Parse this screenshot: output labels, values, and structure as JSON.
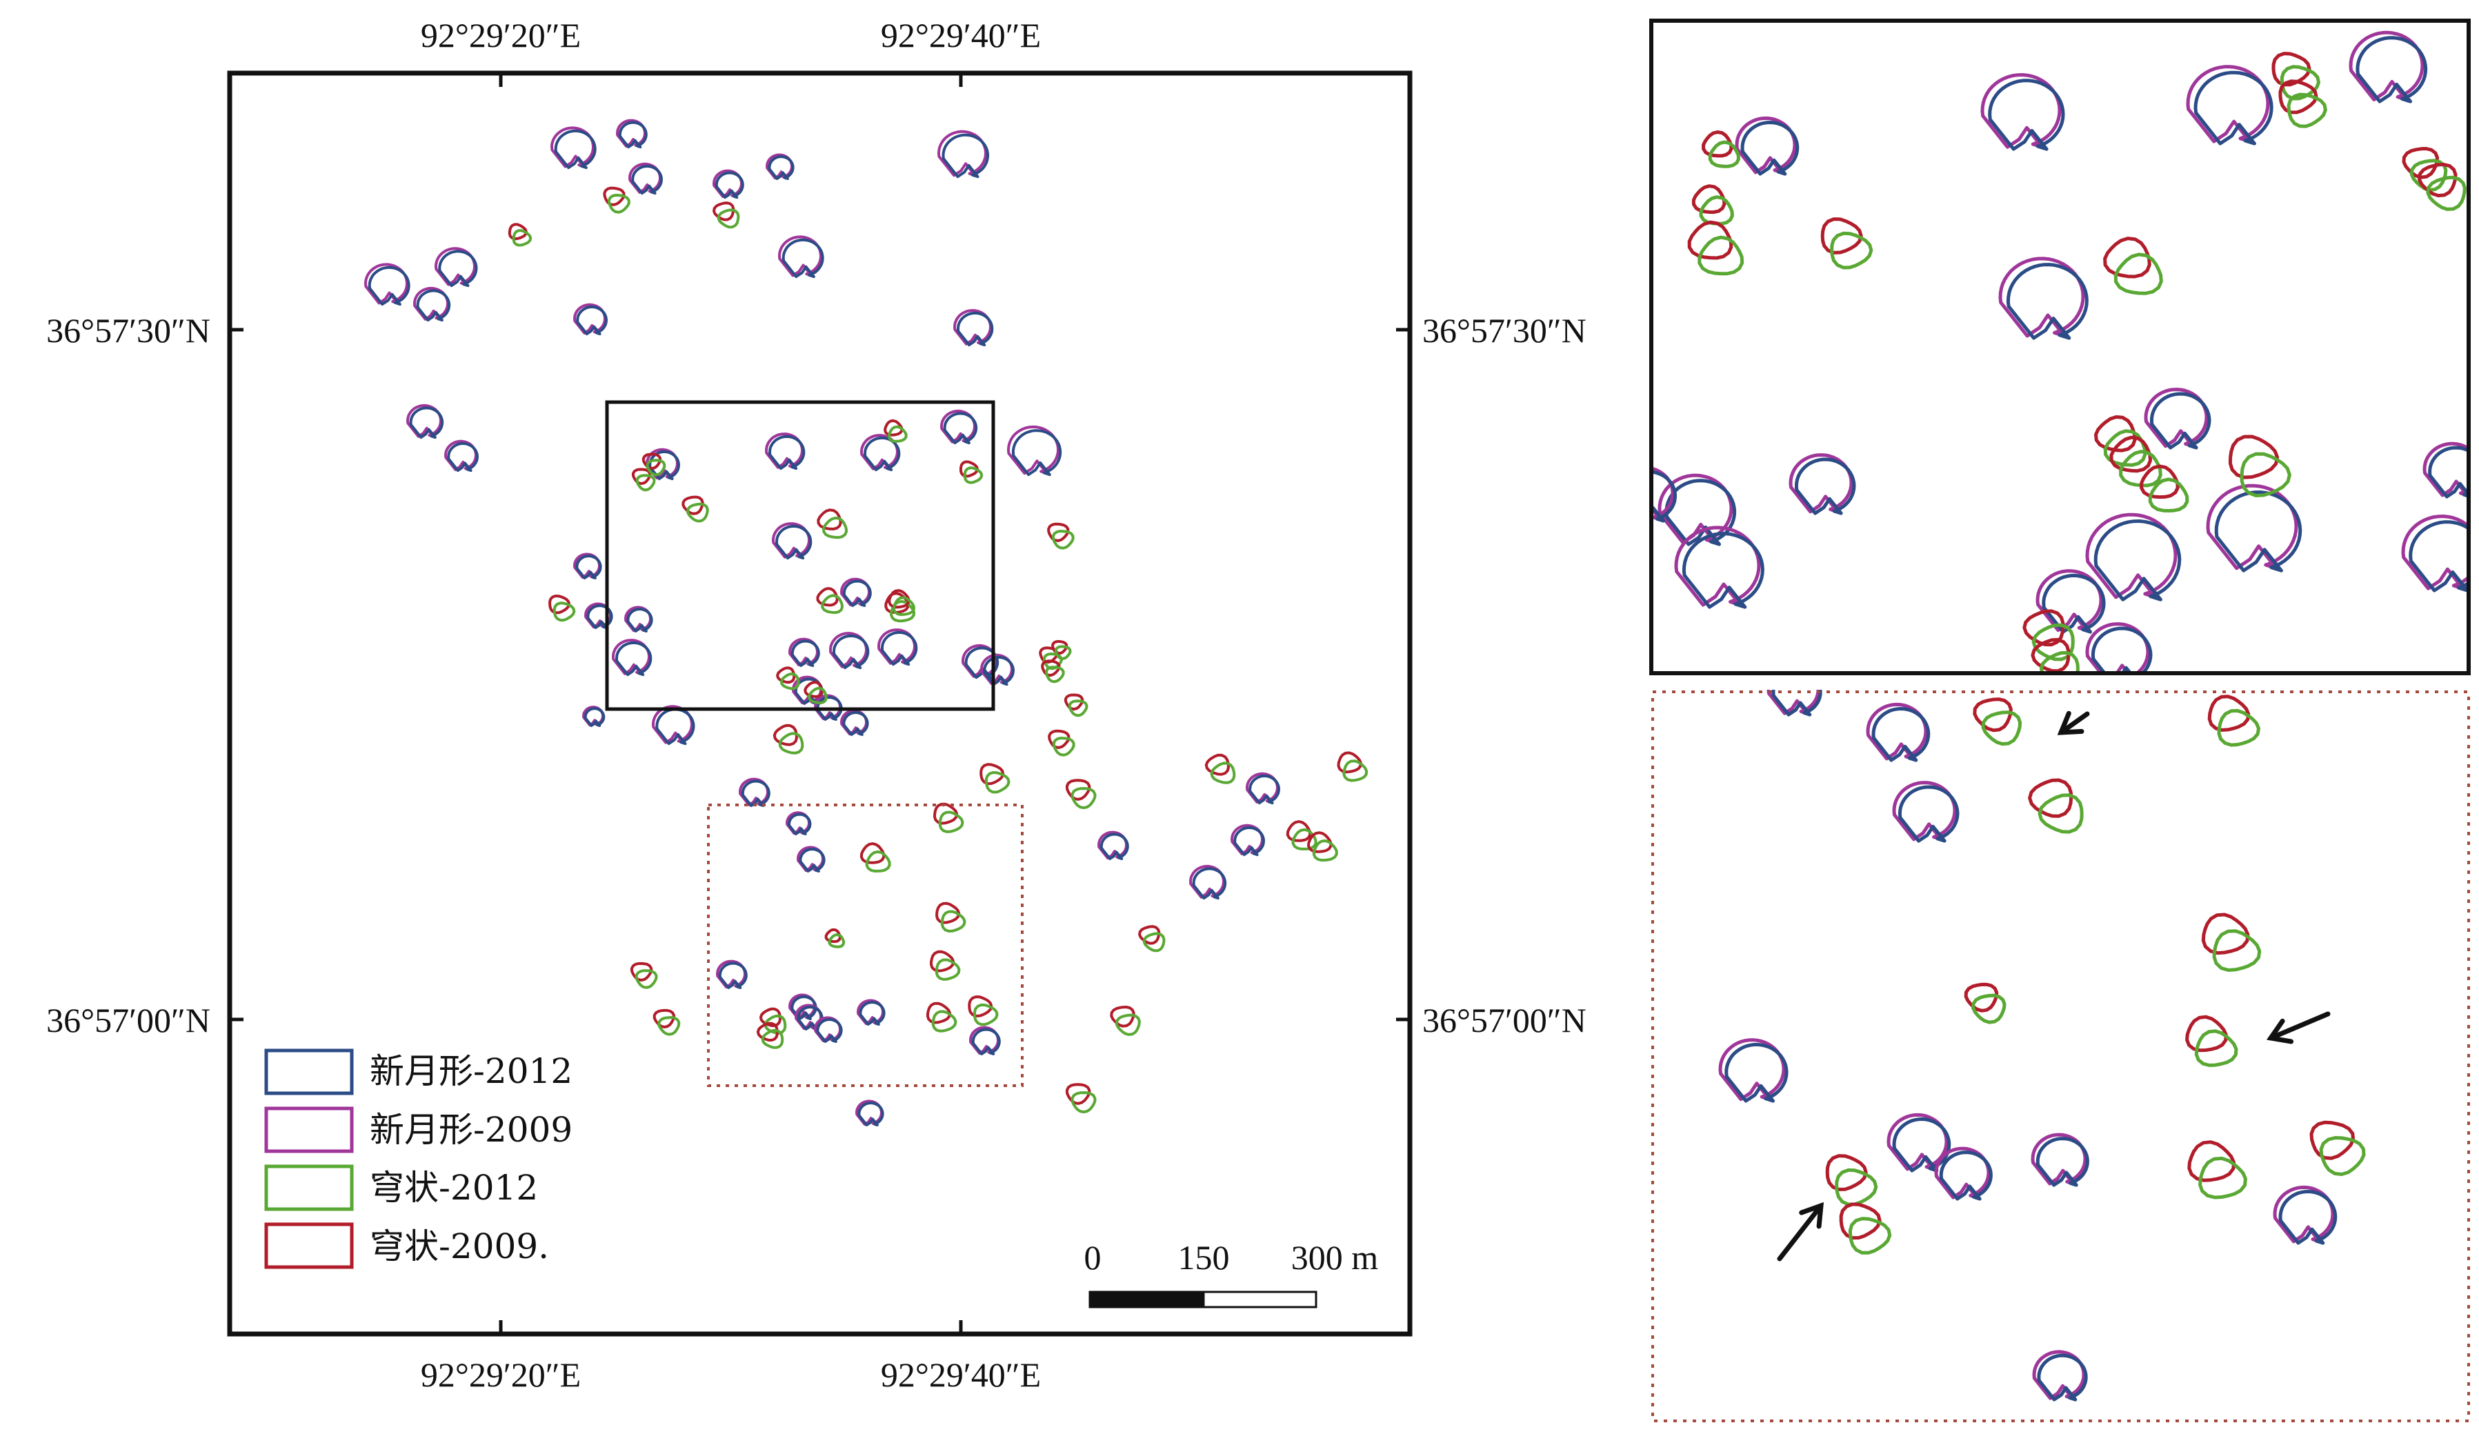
{
  "colors": {
    "crescent_2012": "#2b4c86",
    "crescent_2009": "#a0369a",
    "arc_2012": "#5aa834",
    "arc_2009": "#b11d2a",
    "frame": "#111111",
    "inset_dotted": "#a4493c"
  },
  "axes": {
    "top_ticks": [
      "92°29′20″E",
      "92°29′40″E"
    ],
    "bottom_ticks": [
      "92°29′20″E",
      "92°29′40″E"
    ],
    "left_ticks": [
      "36°57′30″N",
      "36°57′00″N"
    ],
    "right_ticks": [
      "36°57′30″N",
      "36°57′00″N"
    ]
  },
  "scalebar": {
    "labels": [
      "0",
      "150",
      "300 m"
    ]
  },
  "legend": [
    {
      "label": "新月形-2012",
      "color_key": "crescent_2012"
    },
    {
      "label": "新月形-2009",
      "color_key": "crescent_2009"
    },
    {
      "label": "穹状-2012",
      "color_key": "arc_2012"
    },
    {
      "label": "穹状-2009.",
      "color_key": "arc_2009"
    }
  ],
  "icons": {
    "arrow": "arrow-icon",
    "crescent": "crescent-dune-outline",
    "dome": "dome-dune-outline"
  }
}
